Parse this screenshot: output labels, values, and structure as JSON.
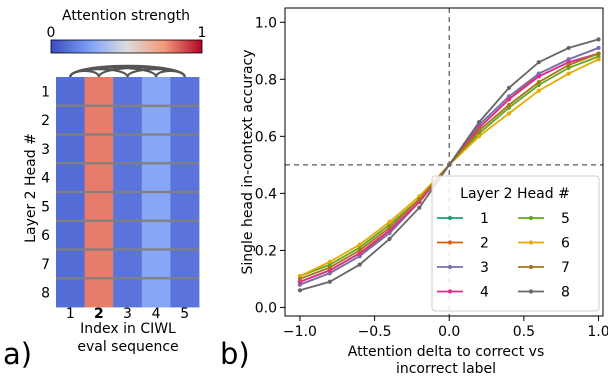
{
  "panel_a": {
    "label": "a)",
    "colorbar": {
      "title": "Attention strength",
      "min_label": "0",
      "max_label": "1",
      "colormap": "coolwarm"
    },
    "ylabel": "Layer 2 Head #",
    "xlabel_lines": [
      "Index in CIWL",
      "eval sequence"
    ],
    "row_labels": [
      "1",
      "2",
      "3",
      "4",
      "5",
      "6",
      "7",
      "8"
    ],
    "col_labels": [
      "1",
      "2",
      "3",
      "4",
      "5"
    ],
    "bold_col": 1,
    "heatmap": [
      [
        0.1,
        0.8,
        0.12,
        0.28,
        0.12
      ],
      [
        0.1,
        0.8,
        0.12,
        0.28,
        0.12
      ],
      [
        0.1,
        0.8,
        0.12,
        0.28,
        0.12
      ],
      [
        0.1,
        0.8,
        0.12,
        0.28,
        0.12
      ],
      [
        0.1,
        0.8,
        0.12,
        0.28,
        0.12
      ],
      [
        0.1,
        0.8,
        0.12,
        0.28,
        0.12
      ],
      [
        0.1,
        0.8,
        0.12,
        0.28,
        0.12
      ],
      [
        0.1,
        0.8,
        0.12,
        0.28,
        0.12
      ]
    ],
    "arc_links": [
      [
        1,
        2
      ],
      [
        1,
        3
      ],
      [
        1,
        4
      ],
      [
        1,
        5
      ],
      [
        2,
        5
      ],
      [
        3,
        5
      ],
      [
        4,
        5
      ]
    ]
  },
  "chart_data": {
    "type": "line",
    "label": "b)",
    "xlabel_lines": [
      "Attention delta to correct vs",
      "incorrect label"
    ],
    "ylabel": "Single head in-context accuracy",
    "xlim": [
      -1.1,
      1.03
    ],
    "ylim": [
      -0.03,
      1.05
    ],
    "xticks": [
      -1.0,
      -0.5,
      0.0,
      0.5,
      1.0
    ],
    "xtick_labels": [
      "−1.0",
      "−0.5",
      "0.0",
      "0.5",
      "1.0"
    ],
    "yticks": [
      0.0,
      0.2,
      0.4,
      0.6,
      0.8,
      1.0
    ],
    "ytick_labels": [
      "0.0",
      "0.2",
      "0.4",
      "0.6",
      "0.8",
      "1.0"
    ],
    "reference_lines": {
      "x": 0.0,
      "y": 0.5
    },
    "legend": {
      "title": "Layer 2 Head #",
      "placement": "lower-right",
      "columns": 2
    },
    "x": [
      -1.0,
      -0.8,
      -0.6,
      -0.4,
      -0.2,
      0.0,
      0.2,
      0.4,
      0.6,
      0.8,
      1.0
    ],
    "series": [
      {
        "name": "1",
        "color": "#1b9e77",
        "values": [
          0.09,
          0.13,
          0.19,
          0.27,
          0.37,
          0.5,
          0.63,
          0.73,
          0.81,
          0.86,
          0.89
        ]
      },
      {
        "name": "2",
        "color": "#d95f02",
        "values": [
          0.08,
          0.12,
          0.18,
          0.27,
          0.37,
          0.5,
          0.63,
          0.73,
          0.82,
          0.87,
          0.91
        ]
      },
      {
        "name": "3",
        "color": "#7570b3",
        "values": [
          0.08,
          0.12,
          0.18,
          0.26,
          0.37,
          0.5,
          0.64,
          0.74,
          0.82,
          0.87,
          0.91
        ]
      },
      {
        "name": "4",
        "color": "#e7298a",
        "values": [
          0.09,
          0.13,
          0.19,
          0.27,
          0.37,
          0.5,
          0.63,
          0.73,
          0.81,
          0.86,
          0.89
        ]
      },
      {
        "name": "5",
        "color": "#66a61e",
        "values": [
          0.11,
          0.15,
          0.21,
          0.29,
          0.38,
          0.5,
          0.61,
          0.7,
          0.78,
          0.84,
          0.88
        ]
      },
      {
        "name": "6",
        "color": "#e6ab02",
        "values": [
          0.11,
          0.16,
          0.22,
          0.3,
          0.39,
          0.5,
          0.6,
          0.68,
          0.76,
          0.82,
          0.87
        ]
      },
      {
        "name": "7",
        "color": "#a6761d",
        "values": [
          0.1,
          0.14,
          0.2,
          0.28,
          0.38,
          0.5,
          0.62,
          0.71,
          0.79,
          0.85,
          0.89
        ]
      },
      {
        "name": "8",
        "color": "#666666",
        "values": [
          0.06,
          0.09,
          0.15,
          0.24,
          0.35,
          0.5,
          0.65,
          0.77,
          0.86,
          0.91,
          0.94
        ]
      }
    ]
  }
}
